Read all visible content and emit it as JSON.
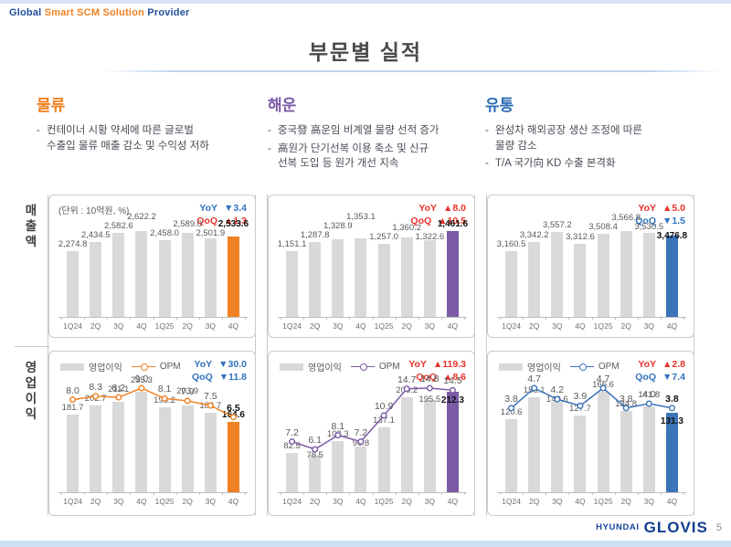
{
  "header": {
    "brand": {
      "part1": "Global",
      "part2": "Smart SCM Solution",
      "part3": "Provider"
    },
    "title": "부문별 실적"
  },
  "colors": {
    "up_red": "#E8312B",
    "down_blue": "#3173BE",
    "bar_gray": "#D9D9D9",
    "logistics_accent": "#F08223",
    "shipping_accent": "#7B5BA6",
    "distribution_accent": "#3B74B9",
    "value_label": "#595959",
    "emphasis_label": "#111111"
  },
  "sections": [
    {
      "key": "logistics",
      "title": "물류",
      "color": "#F08223",
      "bullets": [
        "컨테이너 시황 약세에 따른 글로벌\n수출입 물류 매출 감소 및 수익성 저하"
      ]
    },
    {
      "key": "shipping",
      "title": "해운",
      "color": "#7B5BA6",
      "bullets": [
        "중국發 高운임 비계열 물량 선적 증가",
        "高원가 단기선복 이용 축소 및 신규\n선복 도입 등 원가 개선 지속"
      ]
    },
    {
      "key": "distribution",
      "title": "유통",
      "color": "#2E6DB4",
      "bullets": [
        "완성차 해외공장 생산 조정에 따른\n물량 감소",
        "T/A 국가向 KD 수출 본격화"
      ]
    }
  ],
  "row_labels": {
    "revenue": "매출액",
    "operating_profit": "영업이익"
  },
  "legend": {
    "bar": "영업이익",
    "line": "OPM"
  },
  "footer": {
    "brand_top": "HYUNDAI",
    "brand_main": "GLOVIS",
    "page_number": "5"
  },
  "chart_data": [
    {
      "id": "logistics-revenue",
      "type": "bar",
      "section": "물류",
      "row": "매출액",
      "unit": "(단위 : 10억원, %)",
      "accent": "#F08223",
      "categories": [
        "1Q24",
        "2Q",
        "3Q",
        "4Q",
        "1Q25",
        "2Q",
        "3Q",
        "4Q"
      ],
      "values": [
        2274.8,
        2434.5,
        2582.6,
        2622.2,
        2458.0,
        2589.0,
        2501.9,
        2533.6
      ],
      "labels": [
        "2,274.8",
        "2,434.5",
        "2,582.6",
        "2,622.2",
        "2,458.0",
        "2,589.0",
        "2,501.9",
        "2,533.6"
      ],
      "yoy": {
        "dir": "down",
        "value": "3.4"
      },
      "qoq": {
        "dir": "up",
        "value": "1.3"
      }
    },
    {
      "id": "shipping-revenue",
      "type": "bar",
      "section": "해운",
      "row": "매출액",
      "accent": "#7B5BA6",
      "categories": [
        "1Q24",
        "2Q",
        "3Q",
        "4Q",
        "1Q25",
        "2Q",
        "3Q",
        "4Q"
      ],
      "values": [
        1151.1,
        1287.8,
        1328.9,
        1353.1,
        1257.0,
        1360.2,
        1322.6,
        1461.6
      ],
      "labels": [
        "1,151.1",
        "1,287.8",
        "1,328.9",
        "1,353.1",
        "1,257.0",
        "1,360.2",
        "1,322.6",
        "1,461.6"
      ],
      "yoy": {
        "dir": "up",
        "value": "8.0"
      },
      "qoq": {
        "dir": "up",
        "value": "10.5"
      }
    },
    {
      "id": "distribution-revenue",
      "type": "bar",
      "section": "유통",
      "row": "매출액",
      "accent": "#3B74B9",
      "categories": [
        "1Q24",
        "2Q",
        "3Q",
        "4Q",
        "1Q25",
        "2Q",
        "3Q",
        "4Q"
      ],
      "values": [
        3160.5,
        3342.2,
        3557.2,
        3312.6,
        3508.4,
        3566.8,
        3530.5,
        3476.8
      ],
      "labels": [
        "3,160.5",
        "3,342.2",
        "3,557.2",
        "3,312.6",
        "3,508.4",
        "3,566.8",
        "3,530.5",
        "3,476.8"
      ],
      "yoy": {
        "dir": "up",
        "value": "5.0"
      },
      "qoq": {
        "dir": "down",
        "value": "1.5"
      }
    },
    {
      "id": "logistics-operating-profit",
      "type": "bar+line",
      "section": "물류",
      "row": "영업이익",
      "accent": "#F08223",
      "categories": [
        "1Q24",
        "2Q",
        "3Q",
        "4Q",
        "1Q25",
        "2Q",
        "3Q",
        "4Q"
      ],
      "values": [
        181.7,
        202.7,
        211.1,
        235.3,
        198.2,
        203.9,
        186.7,
        164.6
      ],
      "labels": [
        "181.7",
        "202.7",
        "211.1",
        "235.3",
        "198.2",
        "203.9",
        "186.7",
        "164.6"
      ],
      "opm": [
        8.0,
        8.3,
        8.2,
        9.0,
        8.1,
        7.9,
        7.5,
        6.5
      ],
      "opm_labels": [
        "8.0",
        "8.3",
        "8.2",
        "9.0",
        "8.1",
        "7.9",
        "7.5",
        "6.5"
      ],
      "opm_last_bold": true,
      "last_label_inside": false,
      "yoy": {
        "dir": "down",
        "value": "30.0"
      },
      "qoq": {
        "dir": "down",
        "value": "11.8"
      }
    },
    {
      "id": "shipping-operating-profit",
      "type": "bar+line",
      "section": "해운",
      "row": "영업이익",
      "accent": "#7B5BA6",
      "categories": [
        "1Q24",
        "2Q",
        "3Q",
        "4Q",
        "1Q25",
        "2Q",
        "3Q",
        "4Q"
      ],
      "values": [
        82.5,
        78.5,
        108.3,
        96.8,
        137.1,
        200.2,
        195.5,
        212.3
      ],
      "labels": [
        "82.5",
        "78.5",
        "108.3",
        "96.8",
        "137.1",
        "200.2",
        "195.5",
        "212.3"
      ],
      "opm": [
        7.2,
        6.1,
        8.1,
        7.2,
        10.9,
        14.7,
        14.8,
        14.5
      ],
      "opm_labels": [
        "7.2",
        "6.1",
        "8.1",
        "7.2",
        "10.9",
        "14.7",
        "14.8",
        "14.5"
      ],
      "opm_last_bold": false,
      "last_label_inside": true,
      "yoy": {
        "dir": "up",
        "value": "119.3"
      },
      "qoq": {
        "dir": "up",
        "value": "8.6"
      }
    },
    {
      "id": "distribution-operating-profit",
      "type": "bar+line",
      "section": "유통",
      "row": "영업이익",
      "accent": "#3B74B9",
      "categories": [
        "1Q24",
        "2Q",
        "3Q",
        "4Q",
        "1Q25",
        "2Q",
        "3Q",
        "4Q"
      ],
      "values": [
        120.6,
        158.1,
        149.6,
        127.7,
        166.6,
        134.8,
        141.8,
        131.3
      ],
      "labels": [
        "120.6",
        "158.1",
        "149.6",
        "127.7",
        "166.6",
        "134.8",
        "141.8",
        "131.3"
      ],
      "opm": [
        3.8,
        4.7,
        4.2,
        3.9,
        4.7,
        3.8,
        4.0,
        3.8
      ],
      "opm_labels": [
        "3.8",
        "4.7",
        "4.2",
        "3.9",
        "4.7",
        "3.8",
        "4.0",
        "3.8"
      ],
      "opm_last_bold": true,
      "last_label_inside": true,
      "yoy": {
        "dir": "up",
        "value": "2.8"
      },
      "qoq": {
        "dir": "down",
        "value": "7.4"
      }
    }
  ]
}
